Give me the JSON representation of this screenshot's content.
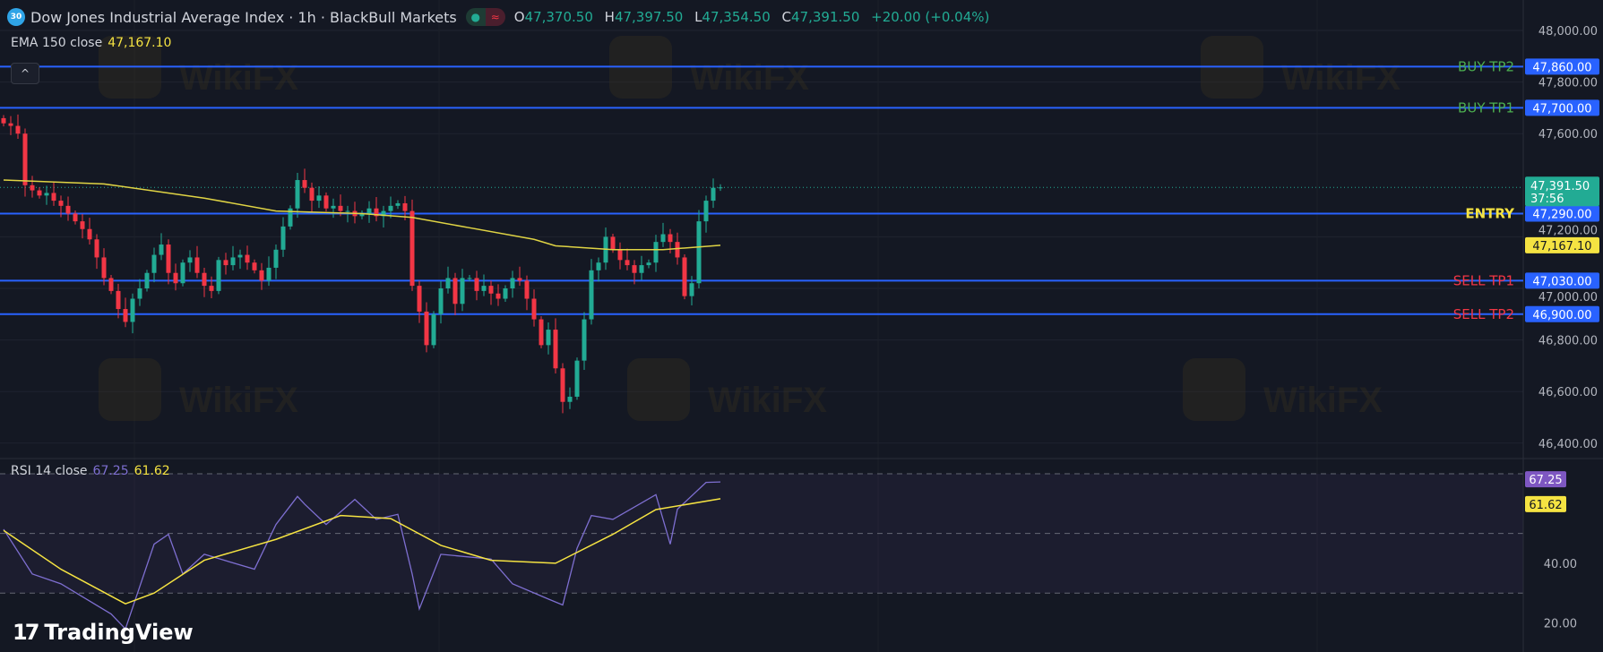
{
  "header": {
    "symbol_badge": "30",
    "title": "Dow Jones Industrial Average Index · 1h · BlackBull Markets",
    "ohlc": [
      {
        "key": "O",
        "value": "47,370.50"
      },
      {
        "key": "H",
        "value": "47,397.50"
      },
      {
        "key": "L",
        "value": "47,354.50"
      },
      {
        "key": "C",
        "value": "47,391.50"
      }
    ],
    "change": "+20.00 (+0.04%)"
  },
  "ema_legend": {
    "label": "EMA 150 close",
    "value": "47,167.10"
  },
  "rsi_legend": {
    "label": "RSI 14 close",
    "rsi_value": "67.25",
    "ma_value": "61.62"
  },
  "collapse_glyph": "^",
  "branding": {
    "logo_text": "TradingView",
    "watermark": "WikiFX"
  },
  "colors": {
    "background": "#141823",
    "up": "#22ab94",
    "down": "#f23645",
    "level_line": "#2962ff",
    "ema": "#e0d444",
    "rsi": "#7e6fd1",
    "rsi_ma": "#f5e342",
    "buy_label": "#4caf50",
    "entry_label": "#f5e342",
    "sell_label": "#f23645"
  },
  "chart_data": [
    {
      "type": "candlestick",
      "title": "Dow Jones Industrial Average Index · 1h · BlackBull Markets",
      "y_ticks": [
        "48,000.00",
        "47,800.00",
        "47,600.00",
        "47,200.00",
        "47,000.00",
        "46,800.00",
        "46,600.00",
        "46,400.00"
      ],
      "y_tick_values": [
        48000,
        47800,
        47600,
        47200,
        47000,
        46800,
        46600,
        46400
      ],
      "ylim": [
        46300,
        48050
      ],
      "closes": [
        47640,
        47630,
        47600,
        47400,
        47380,
        47360,
        47370,
        47340,
        47320,
        47290,
        47260,
        47230,
        47190,
        47120,
        47040,
        46990,
        46920,
        46870,
        46960,
        47000,
        47060,
        47130,
        47170,
        47060,
        47020,
        47100,
        47120,
        47060,
        47010,
        46990,
        47110,
        47090,
        47120,
        47130,
        47100,
        47070,
        47030,
        47080,
        47150,
        47240,
        47310,
        47420,
        47390,
        47340,
        47360,
        47310,
        47320,
        47300,
        47300,
        47280,
        47290,
        47310,
        47280,
        47300,
        47320,
        47330,
        47300,
        47010,
        46910,
        46780,
        46900,
        47000,
        47040,
        46940,
        47040,
        47040,
        46990,
        47010,
        46980,
        46960,
        47000,
        47040,
        47030,
        46960,
        46880,
        46780,
        46840,
        46690,
        46560,
        46580,
        46720,
        46880,
        47070,
        47100,
        47200,
        47150,
        47110,
        47090,
        47060,
        47090,
        47100,
        47180,
        47210,
        47180,
        47120,
        46970,
        47020,
        47260,
        47340,
        47390,
        47391.5
      ],
      "first_open": 47660,
      "ema": {
        "name": "EMA 150 close",
        "points": [
          [
            0,
            47420
          ],
          [
            14,
            47405
          ],
          [
            28,
            47350
          ],
          [
            38,
            47300
          ],
          [
            50,
            47290
          ],
          [
            57,
            47275
          ],
          [
            65,
            47235
          ],
          [
            74,
            47190
          ],
          [
            77,
            47165
          ],
          [
            85,
            47150
          ],
          [
            92,
            47150
          ],
          [
            100,
            47167.1
          ]
        ]
      },
      "last_price": {
        "value": "47,391.50",
        "countdown": "37:56"
      },
      "ema_label": "47,167.10",
      "levels": [
        {
          "label": "BUY TP2",
          "price": 47860,
          "price_label": "47,860.00",
          "kind": "buy"
        },
        {
          "label": "BUY TP1",
          "price": 47700,
          "price_label": "47,700.00",
          "kind": "buy"
        },
        {
          "label": "ENTRY",
          "price": 47290,
          "price_label": "47,290.00",
          "kind": "entry"
        },
        {
          "label": "SELL TP1",
          "price": 47030,
          "price_label": "47,030.00",
          "kind": "sell"
        },
        {
          "label": "SELL TP2",
          "price": 46900,
          "price_label": "46,900.00",
          "kind": "sell"
        }
      ]
    },
    {
      "type": "line",
      "title": "RSI 14 close",
      "y_ticks": [
        "40.00",
        "20.00"
      ],
      "y_tick_values": [
        40,
        20
      ],
      "bands": [
        70,
        50,
        30
      ],
      "rsi": {
        "points": [
          [
            0,
            51.4
          ],
          [
            4,
            36.4
          ],
          [
            8,
            33.1
          ],
          [
            15,
            23
          ],
          [
            17,
            18
          ],
          [
            21,
            46.4
          ],
          [
            23,
            49.7
          ],
          [
            25,
            36.4
          ],
          [
            28,
            43
          ],
          [
            35,
            38
          ],
          [
            38,
            53
          ],
          [
            41,
            62.4
          ],
          [
            42,
            59.8
          ],
          [
            45,
            53
          ],
          [
            49,
            61.4
          ],
          [
            52,
            54.7
          ],
          [
            55,
            56.4
          ],
          [
            57,
            36.4
          ],
          [
            58,
            24.7
          ],
          [
            61,
            43
          ],
          [
            68,
            41.4
          ],
          [
            71,
            33.1
          ],
          [
            76,
            28
          ],
          [
            78,
            26
          ],
          [
            80,
            45
          ],
          [
            82,
            56
          ],
          [
            85,
            54.7
          ],
          [
            91,
            63
          ],
          [
            93,
            46.4
          ],
          [
            94,
            58.1
          ],
          [
            98,
            67.1
          ],
          [
            100,
            67.25
          ]
        ]
      },
      "rsi_ma": {
        "points": [
          [
            0,
            51
          ],
          [
            8,
            38
          ],
          [
            17,
            26.4
          ],
          [
            21,
            30
          ],
          [
            28,
            41
          ],
          [
            38,
            48
          ],
          [
            47,
            56
          ],
          [
            54,
            55
          ],
          [
            61,
            46
          ],
          [
            68,
            41
          ],
          [
            77,
            40
          ],
          [
            85,
            49.7
          ],
          [
            91,
            58
          ],
          [
            100,
            61.62
          ]
        ]
      },
      "value_labels": [
        "67.25",
        "61.62"
      ]
    }
  ]
}
